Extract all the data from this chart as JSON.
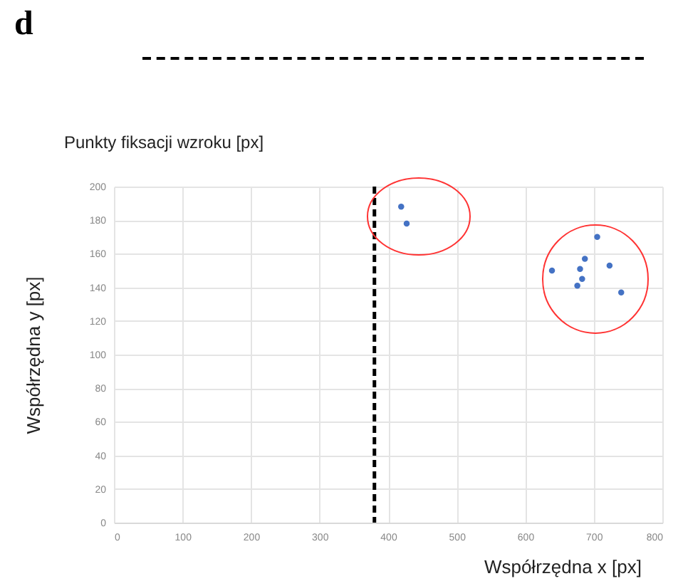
{
  "chart_data": {
    "type": "scatter",
    "title": "Punkty fiksacji wzroku [px]",
    "xlabel": "Współrzędna x [px]",
    "ylabel": "Współrzędna y [px]",
    "annotations": [
      "d"
    ],
    "x": [
      419,
      427,
      639,
      680,
      683,
      676,
      687,
      705,
      723,
      740
    ],
    "series": [
      {
        "color": "#4472c4",
        "values": [
          188,
          178,
          150,
          151,
          145,
          141,
          157,
          170,
          153,
          137
        ]
      }
    ],
    "xlim": [
      0,
      800
    ],
    "xticks": [
      0,
      100,
      200,
      300,
      400,
      500,
      600,
      700,
      800
    ],
    "ylim": [
      0,
      200
    ],
    "yticks": [
      0,
      20,
      40,
      60,
      80,
      100,
      120,
      140,
      160,
      180,
      200
    ],
    "grid": true,
    "marker": "circle",
    "ref_lines": [
      {
        "axis": "x",
        "value": 380,
        "color": "#000000",
        "line_style": "dashed"
      }
    ]
  }
}
